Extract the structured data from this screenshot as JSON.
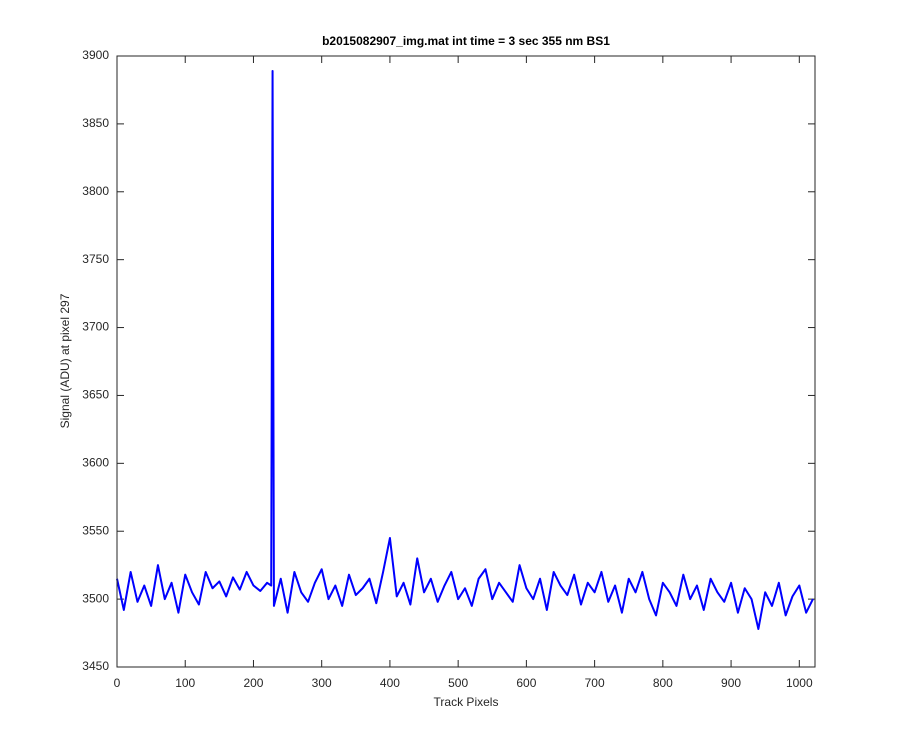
{
  "chart_data": {
    "type": "line",
    "title": "b2015082907_img.mat int time = 3 sec  355 nm BS1",
    "xlabel": "Track Pixels",
    "ylabel": "Signal (ADU) at pixel 297",
    "xlim": [
      0,
      1023
    ],
    "ylim": [
      3450,
      3900
    ],
    "xticks": [
      0,
      100,
      200,
      300,
      400,
      500,
      600,
      700,
      800,
      900,
      1000
    ],
    "yticks": [
      3450,
      3500,
      3550,
      3600,
      3650,
      3700,
      3750,
      3800,
      3850,
      3900
    ],
    "series": [
      {
        "color": "#0000ff",
        "x": [
          0,
          10,
          20,
          30,
          40,
          50,
          60,
          70,
          80,
          90,
          100,
          110,
          120,
          130,
          140,
          150,
          160,
          170,
          180,
          190,
          200,
          210,
          220,
          226,
          228,
          230,
          240,
          250,
          260,
          270,
          280,
          290,
          300,
          310,
          320,
          330,
          340,
          350,
          360,
          370,
          380,
          390,
          400,
          410,
          420,
          430,
          440,
          450,
          460,
          470,
          480,
          490,
          500,
          510,
          520,
          530,
          540,
          550,
          560,
          570,
          580,
          590,
          600,
          610,
          620,
          630,
          640,
          650,
          660,
          670,
          680,
          690,
          700,
          710,
          720,
          730,
          740,
          750,
          760,
          770,
          780,
          790,
          800,
          810,
          820,
          830,
          840,
          850,
          860,
          870,
          880,
          890,
          900,
          910,
          920,
          930,
          940,
          950,
          960,
          970,
          980,
          990,
          1000,
          1010,
          1020
        ],
        "values": [
          3515,
          3492,
          3520,
          3498,
          3510,
          3495,
          3525,
          3500,
          3512,
          3490,
          3518,
          3505,
          3496,
          3520,
          3508,
          3513,
          3502,
          3516,
          3507,
          3520,
          3510,
          3506,
          3512,
          3510,
          3889,
          3495,
          3515,
          3490,
          3520,
          3505,
          3498,
          3512,
          3522,
          3500,
          3510,
          3495,
          3518,
          3503,
          3508,
          3515,
          3497,
          3520,
          3545,
          3502,
          3512,
          3496,
          3530,
          3505,
          3515,
          3498,
          3510,
          3520,
          3500,
          3508,
          3495,
          3515,
          3522,
          3500,
          3512,
          3505,
          3498,
          3525,
          3508,
          3500,
          3515,
          3492,
          3520,
          3510,
          3503,
          3518,
          3496,
          3512,
          3505,
          3520,
          3498,
          3510,
          3490,
          3515,
          3505,
          3520,
          3500,
          3488,
          3512,
          3505,
          3495,
          3518,
          3500,
          3510,
          3492,
          3515,
          3505,
          3498,
          3512,
          3490,
          3508,
          3500,
          3478,
          3505,
          3495,
          3512,
          3488,
          3502,
          3510,
          3490,
          3500
        ]
      }
    ]
  }
}
